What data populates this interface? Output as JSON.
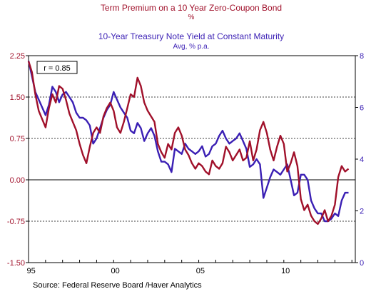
{
  "chart_data": {
    "type": "line",
    "title": "Term Premium on a 10 Year Zero-Coupon Bond",
    "title_units": "%",
    "subtitle": "10-Year Treasury Note Yield at Constant Maturity",
    "subtitle_units": "Avg, % p.a.",
    "annotation": "r = 0.85",
    "source": "Source:  Federal Reserve Board /Haver Analytics",
    "colors": {
      "term_premium": "#a0102a",
      "treasury_yield": "#3a1fb4",
      "axis_right": "#3a1fb4",
      "axis_left": "#a0102a"
    },
    "x_axis": {
      "range": [
        1995.0,
        2014.2
      ],
      "ticks": [
        {
          "value": 1995.15,
          "label": "95"
        },
        {
          "value": 2000.1,
          "label": "00"
        },
        {
          "value": 2005.1,
          "label": "05"
        },
        {
          "value": 2010.1,
          "label": "10"
        }
      ]
    },
    "y_left": {
      "range": [
        -1.5,
        2.25
      ],
      "ticks": [
        {
          "value": 2.25,
          "label": "2.25"
        },
        {
          "value": 1.5,
          "label": "1.50"
        },
        {
          "value": 0.75,
          "label": "0.75"
        },
        {
          "value": 0.0,
          "label": "0.00"
        },
        {
          "value": -0.75,
          "label": "-0.75"
        },
        {
          "value": -1.5,
          "label": "-1.50"
        }
      ],
      "gridlines": [
        1.5,
        0.75,
        0.0,
        -0.75
      ]
    },
    "y_right": {
      "range": [
        0,
        8
      ],
      "ticks": [
        {
          "value": 8,
          "label": "8"
        },
        {
          "value": 6,
          "label": "6"
        },
        {
          "value": 4,
          "label": "4"
        },
        {
          "value": 2,
          "label": "2"
        },
        {
          "value": 0,
          "label": "0"
        }
      ]
    },
    "series": [
      {
        "key": "term_premium",
        "axis": "left",
        "x": [
          1995.0,
          1995.2,
          1995.4,
          1995.6,
          1995.8,
          1996.0,
          1996.2,
          1996.4,
          1996.6,
          1996.8,
          1997.0,
          1997.2,
          1997.4,
          1997.6,
          1997.8,
          1998.0,
          1998.2,
          1998.4,
          1998.6,
          1998.8,
          1999.0,
          1999.2,
          1999.4,
          1999.6,
          1999.8,
          2000.0,
          2000.2,
          2000.4,
          2000.6,
          2000.8,
          2001.0,
          2001.2,
          2001.4,
          2001.6,
          2001.8,
          2002.0,
          2002.2,
          2002.4,
          2002.6,
          2002.8,
          2003.0,
          2003.2,
          2003.4,
          2003.6,
          2003.8,
          2004.0,
          2004.2,
          2004.4,
          2004.6,
          2004.8,
          2005.0,
          2005.2,
          2005.4,
          2005.6,
          2005.8,
          2006.0,
          2006.2,
          2006.4,
          2006.6,
          2006.8,
          2007.0,
          2007.2,
          2007.4,
          2007.6,
          2007.8,
          2008.0,
          2008.2,
          2008.4,
          2008.6,
          2008.8,
          2009.0,
          2009.2,
          2009.4,
          2009.6,
          2009.8,
          2010.0,
          2010.2,
          2010.4,
          2010.6,
          2010.8,
          2011.0,
          2011.2,
          2011.4,
          2011.6,
          2011.8,
          2012.0,
          2012.2,
          2012.4,
          2012.6,
          2012.8,
          2013.0,
          2013.2,
          2013.4,
          2013.6,
          2013.8
        ],
        "y": [
          2.15,
          1.95,
          1.55,
          1.25,
          1.1,
          0.95,
          1.3,
          1.55,
          1.4,
          1.7,
          1.65,
          1.45,
          1.2,
          1.05,
          0.9,
          0.65,
          0.45,
          0.3,
          0.6,
          0.85,
          0.95,
          0.85,
          1.15,
          1.3,
          1.4,
          1.25,
          0.95,
          0.85,
          1.05,
          1.3,
          1.55,
          1.5,
          1.85,
          1.7,
          1.4,
          1.25,
          1.15,
          1.05,
          0.65,
          0.5,
          0.4,
          0.65,
          0.55,
          0.85,
          0.95,
          0.8,
          0.55,
          0.45,
          0.3,
          0.2,
          0.3,
          0.25,
          0.15,
          0.1,
          0.35,
          0.25,
          0.2,
          0.3,
          0.6,
          0.5,
          0.35,
          0.45,
          0.55,
          0.35,
          0.4,
          0.7,
          0.35,
          0.55,
          0.9,
          1.05,
          0.85,
          0.55,
          0.35,
          0.6,
          0.8,
          0.65,
          0.15,
          0.3,
          0.5,
          0.25,
          -0.35,
          -0.55,
          -0.45,
          -0.65,
          -0.75,
          -0.8,
          -0.7,
          -0.55,
          -0.75,
          -0.65,
          -0.45,
          0.05,
          0.25,
          0.15,
          0.2
        ]
      },
      {
        "key": "treasury_yield",
        "axis": "right",
        "x": [
          1995.0,
          1995.2,
          1995.4,
          1995.6,
          1995.8,
          1996.0,
          1996.2,
          1996.4,
          1996.6,
          1996.8,
          1997.0,
          1997.2,
          1997.4,
          1997.6,
          1997.8,
          1998.0,
          1998.2,
          1998.4,
          1998.6,
          1998.8,
          1999.0,
          1999.2,
          1999.4,
          1999.6,
          1999.8,
          2000.0,
          2000.2,
          2000.4,
          2000.6,
          2000.8,
          2001.0,
          2001.2,
          2001.4,
          2001.6,
          2001.8,
          2002.0,
          2002.2,
          2002.4,
          2002.6,
          2002.8,
          2003.0,
          2003.2,
          2003.4,
          2003.6,
          2003.8,
          2004.0,
          2004.2,
          2004.4,
          2004.6,
          2004.8,
          2005.0,
          2005.2,
          2005.4,
          2005.6,
          2005.8,
          2006.0,
          2006.2,
          2006.4,
          2006.6,
          2006.8,
          2007.0,
          2007.2,
          2007.4,
          2007.6,
          2007.8,
          2008.0,
          2008.2,
          2008.4,
          2008.6,
          2008.8,
          2009.0,
          2009.2,
          2009.4,
          2009.6,
          2009.8,
          2010.0,
          2010.2,
          2010.4,
          2010.6,
          2010.8,
          2011.0,
          2011.2,
          2011.4,
          2011.6,
          2011.8,
          2012.0,
          2012.2,
          2012.4,
          2012.6,
          2012.8,
          2013.0,
          2013.2,
          2013.4,
          2013.6,
          2013.8
        ],
        "y": [
          7.8,
          7.2,
          6.6,
          6.3,
          6.0,
          5.7,
          6.1,
          6.8,
          6.6,
          6.2,
          6.5,
          6.6,
          6.4,
          6.2,
          5.8,
          5.6,
          5.6,
          5.5,
          5.3,
          4.6,
          4.8,
          5.2,
          5.6,
          5.9,
          6.1,
          6.6,
          6.3,
          6.0,
          5.8,
          5.6,
          5.1,
          5.0,
          5.4,
          5.2,
          4.7,
          5.0,
          5.2,
          4.9,
          4.3,
          3.9,
          3.9,
          3.8,
          3.5,
          4.4,
          4.3,
          4.2,
          4.6,
          4.4,
          4.3,
          4.2,
          4.3,
          4.5,
          4.1,
          4.2,
          4.5,
          4.6,
          4.9,
          5.1,
          4.8,
          4.6,
          4.7,
          4.8,
          5.0,
          4.7,
          4.4,
          3.7,
          3.8,
          4.0,
          3.8,
          2.5,
          2.9,
          3.3,
          3.6,
          3.5,
          3.4,
          3.6,
          3.8,
          3.2,
          2.6,
          2.7,
          3.4,
          3.4,
          3.2,
          2.4,
          2.1,
          1.9,
          1.9,
          1.6,
          1.6,
          1.7,
          1.9,
          1.8,
          2.4,
          2.7,
          2.7
        ]
      }
    ]
  }
}
